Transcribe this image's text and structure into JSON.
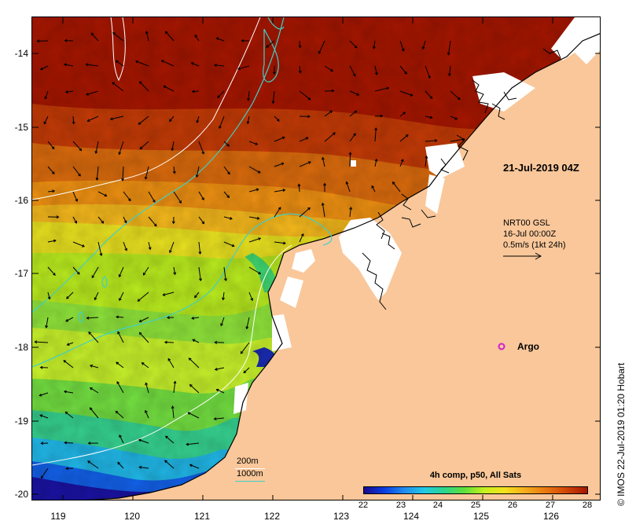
{
  "date_title": "21-Jul-2019 04Z",
  "currents": {
    "line1": "NRT00 GSL",
    "line2": "16-Jul 00:00Z",
    "line3": "0.5m/s (1kt 24h)"
  },
  "argo": {
    "label": "Argo",
    "marker_color": "#d020d0"
  },
  "colorbar": {
    "title": "4h comp, p50, All Sats",
    "labels": [
      "22",
      "23",
      "24",
      "25",
      "26",
      "27",
      "28"
    ]
  },
  "isobath_legend": {
    "shallow_label": "200m",
    "shallow_color": "#ffffff",
    "deep_label": "1000m",
    "deep_color": "#40d0c8"
  },
  "axes": {
    "x_labels": [
      "119",
      "120",
      "121",
      "122",
      "123",
      "124",
      "125",
      "126"
    ],
    "y_labels": [
      "-14",
      "-15",
      "-16",
      "-17",
      "-18",
      "-19",
      "-20"
    ]
  },
  "colors": {
    "land": "#f9c79a",
    "cloud": "#ffffff"
  },
  "copyright": "© IMOS 22-Jul-2019 01:20 Hobart"
}
